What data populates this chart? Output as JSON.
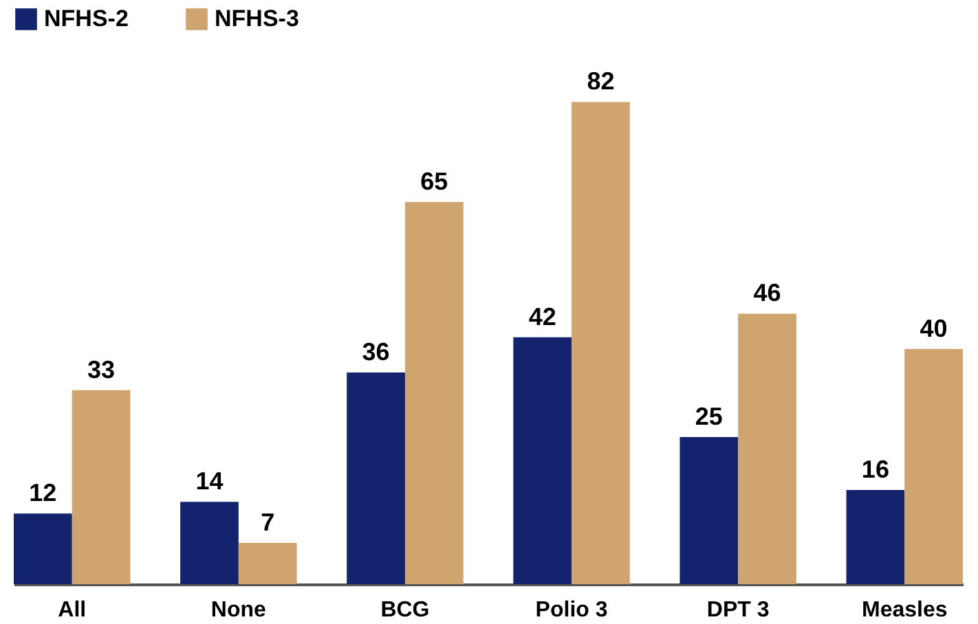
{
  "chart_data": {
    "type": "bar",
    "categories": [
      "All",
      "None",
      "BCG",
      "Polio 3",
      "DPT 3",
      "Measles"
    ],
    "series": [
      {
        "name": "NFHS-2",
        "color": "#13236e",
        "values": [
          12,
          14,
          36,
          42,
          25,
          16
        ]
      },
      {
        "name": "NFHS-3",
        "color": "#cfa46e",
        "values": [
          33,
          7,
          65,
          82,
          46,
          40
        ]
      }
    ],
    "data_labels": true,
    "legend": "top",
    "grid": false
  }
}
